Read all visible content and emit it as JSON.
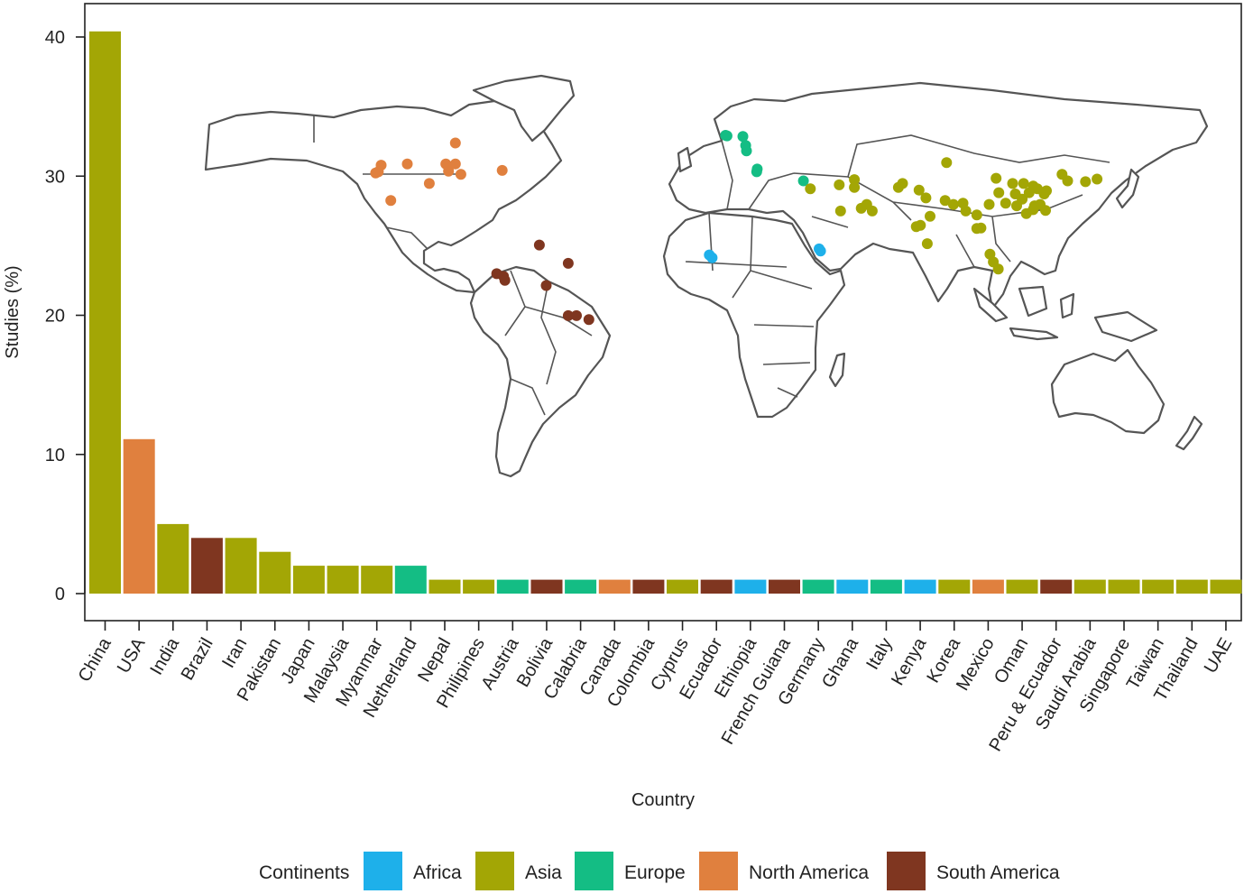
{
  "chart_data": {
    "type": "bar",
    "xlabel": "Country",
    "ylabel": "Studies (%)",
    "ylim": [
      0,
      41.5
    ],
    "yticks": [
      0,
      10,
      20,
      30,
      40
    ],
    "grid": false,
    "legend_title": "Continents",
    "legend_position": "bottom",
    "continents": [
      {
        "name": "Africa",
        "color": "#1EB0EA"
      },
      {
        "name": "Asia",
        "color": "#A3A605"
      },
      {
        "name": "Europe",
        "color": "#14BD84"
      },
      {
        "name": "North America",
        "color": "#E0803E"
      },
      {
        "name": "South America",
        "color": "#7F3620"
      }
    ],
    "categories": [
      "China",
      "USA",
      "India",
      "Brazil",
      "Iran",
      "Pakistan",
      "Japan",
      "Malaysia",
      "Myanmar",
      "Netherland",
      "Nepal",
      "Philipines",
      "Austria",
      "Bolivia",
      "Calabria",
      "Canada",
      "Colombia",
      "Cyprus",
      "Ecuador",
      "Ethiopia",
      "French Guiana",
      "Germany",
      "Ghana",
      "Italy",
      "Kenya",
      "Korea",
      "Mexico",
      "Oman",
      "Peru & Ecuador",
      "Saudi Arabia",
      "Singapore",
      "Taiwan",
      "Thailand",
      "UAE"
    ],
    "values": [
      40.4,
      11.1,
      5,
      4,
      4,
      3,
      2,
      2,
      2,
      2,
      1,
      1,
      1,
      1,
      1,
      1,
      1,
      1,
      1,
      1,
      1,
      1,
      1,
      1,
      1,
      1,
      1,
      1,
      1,
      1,
      1,
      1,
      1,
      1
    ],
    "continent": [
      "Asia",
      "North America",
      "Asia",
      "South America",
      "Asia",
      "Asia",
      "Asia",
      "Asia",
      "Asia",
      "Europe",
      "Asia",
      "Asia",
      "Europe",
      "South America",
      "Europe",
      "North America",
      "South America",
      "Asia",
      "South America",
      "Africa",
      "South America",
      "Europe",
      "Africa",
      "Europe",
      "Africa",
      "Asia",
      "North America",
      "Asia",
      "South America",
      "Asia",
      "Asia",
      "Asia",
      "Asia",
      "Asia"
    ],
    "inset_map": {
      "type": "scatter",
      "x_unit": "longitude",
      "y_unit": "latitude",
      "points": [
        {
          "continent": "North America",
          "coords": [
            [
              -122.5,
              38
            ],
            [
              -121.5,
              38.5
            ],
            [
              -120.5,
              41
            ],
            [
              -111,
              41.5
            ],
            [
              -97,
              41.5
            ],
            [
              -93.5,
              41.5
            ],
            [
              -96,
              38.7
            ],
            [
              -91.5,
              37.5
            ],
            [
              -103,
              34
            ],
            [
              -76.5,
              39
            ],
            [
              -93.5,
              49.5
            ],
            [
              -117,
              27.5
            ]
          ]
        },
        {
          "continent": "South America",
          "coords": [
            [
              -63,
              10.5
            ],
            [
              -78.5,
              -0.5
            ],
            [
              -76,
              -1.5
            ],
            [
              -75.5,
              -3
            ],
            [
              -60.5,
              -5
            ],
            [
              -52.5,
              3.5
            ],
            [
              -52.5,
              -16.5
            ],
            [
              -49.5,
              -16.5
            ],
            [
              -45,
              -18
            ]
          ]
        },
        {
          "continent": "Europe",
          "coords": [
            [
              4.7,
              52.4
            ],
            [
              5.2,
              52.2
            ],
            [
              11,
              52
            ],
            [
              12,
              48.5
            ],
            [
              12.3,
              46.5
            ],
            [
              16,
              38.5
            ],
            [
              16.2,
              39.5
            ],
            [
              33,
              35
            ]
          ]
        },
        {
          "continent": "Africa",
          "coords": [
            [
              -1.2,
              6.7
            ],
            [
              -0.2,
              5.6
            ],
            [
              38.7,
              9
            ],
            [
              39.2,
              8.2
            ]
          ]
        },
        {
          "continent": "Asia",
          "coords": [
            [
              35.5,
              32
            ],
            [
              46,
              33.5
            ],
            [
              51.5,
              35.5
            ],
            [
              51.5,
              32.5
            ],
            [
              54,
              24.5
            ],
            [
              46.5,
              23.5
            ],
            [
              58,
              23.5
            ],
            [
              56,
              26
            ],
            [
              69,
              34
            ],
            [
              67.5,
              32.5
            ],
            [
              75,
              31.5
            ],
            [
              77.5,
              28.5
            ],
            [
              79,
              21.5
            ],
            [
              75.5,
              18
            ],
            [
              74,
              17.5
            ],
            [
              78,
              11
            ],
            [
              84.5,
              27.5
            ],
            [
              87.5,
              26
            ],
            [
              92,
              23.5
            ],
            [
              91,
              26.5
            ],
            [
              96,
              22
            ],
            [
              97.5,
              17
            ],
            [
              96,
              16.8
            ],
            [
              100.8,
              7
            ],
            [
              102,
              4
            ],
            [
              103.8,
              1.3
            ],
            [
              85,
              42
            ],
            [
              103,
              36
            ],
            [
              109,
              34
            ],
            [
              113,
              34
            ],
            [
              110.5,
              25.5
            ],
            [
              112.5,
              28
            ],
            [
              116.5,
              33
            ],
            [
              118,
              32
            ],
            [
              121.3,
              31.2
            ],
            [
              120.5,
              30
            ],
            [
              117,
              25.5
            ],
            [
              119,
              26
            ],
            [
              114,
              22.5
            ],
            [
              116.5,
              24
            ],
            [
              104,
              30.5
            ],
            [
              100.5,
              26
            ],
            [
              106.5,
              26.5
            ],
            [
              121,
              23.7
            ],
            [
              127,
              37.5
            ],
            [
              129,
              35
            ],
            [
              139.7,
              35.7
            ],
            [
              135.5,
              34.7
            ],
            [
              110,
              30
            ],
            [
              115,
              30.5
            ]
          ]
        }
      ]
    }
  }
}
